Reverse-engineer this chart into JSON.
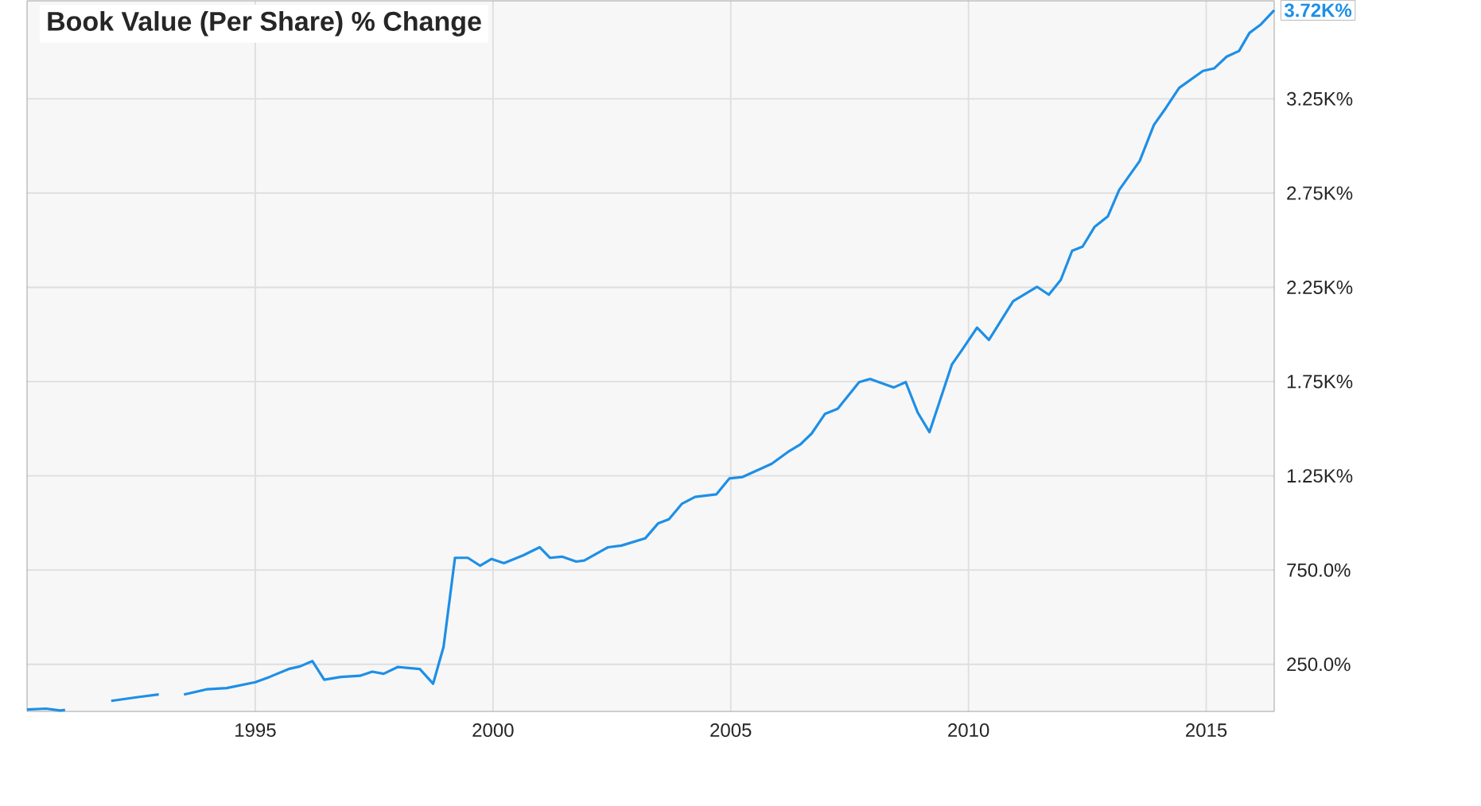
{
  "chart_data": {
    "type": "line",
    "title": "Book Value (Per Share) % Change",
    "x": [
      1990.2,
      1990.6,
      1990.9,
      1991.0,
      1991.05,
      1991.97,
      1992.5,
      1992.97,
      1993.2,
      1993.5,
      1993.99,
      1994.4,
      1995.0,
      1995.3,
      1995.7,
      1995.94,
      1996.2,
      1996.45,
      1996.8,
      1997.2,
      1997.46,
      1997.7,
      1998.0,
      1998.46,
      1998.74,
      1998.96,
      1999.2,
      1999.47,
      1999.73,
      1999.97,
      2000.23,
      2000.64,
      2000.98,
      2001.2,
      2001.45,
      2001.75,
      2001.92,
      2002.42,
      2002.7,
      2003.2,
      2003.47,
      2003.7,
      2003.97,
      2004.25,
      2004.7,
      2004.97,
      2005.25,
      2005.86,
      2006.2,
      2006.47,
      2006.7,
      2006.98,
      2007.25,
      2007.7,
      2007.93,
      2008.43,
      2008.68,
      2008.93,
      2009.18,
      2009.65,
      2009.88,
      2010.18,
      2010.43,
      2010.94,
      2011.44,
      2011.69,
      2011.94,
      2012.18,
      2012.4,
      2012.65,
      2012.93,
      2013.17,
      2013.6,
      2013.9,
      2014.15,
      2014.43,
      2014.93,
      2015.17,
      2015.43,
      2015.69,
      2015.91,
      2016.15,
      2016.43
    ],
    "series": [
      {
        "color": "#1e8fe6",
        "values": [
          10,
          15,
          5,
          8,
          null,
          56,
          75,
          90,
          null,
          90,
          118,
          124,
          155,
          183,
          225,
          239,
          267,
          168,
          183,
          189,
          211,
          200,
          236,
          225,
          147,
          343,
          815,
          815,
          773,
          809,
          787,
          829,
          871,
          815,
          821,
          795,
          801,
          871,
          880,
          918,
          997,
          1020,
          1101,
          1138,
          1152,
          1236,
          1244,
          1314,
          1376,
          1418,
          1474,
          1578,
          1606,
          1747,
          1764,
          1719,
          1747,
          1587,
          1482,
          1840,
          1924,
          2036,
          1971,
          2177,
          2253,
          2211,
          2289,
          2444,
          2466,
          2570,
          2626,
          2767,
          2920,
          3112,
          3201,
          3308,
          3398,
          3412,
          3474,
          3504,
          3600,
          3645,
          3720
        ]
      }
    ],
    "xlim": [
      1990.2,
      2016.43
    ],
    "ylim": [
      0,
      3770
    ],
    "xticks": [
      1995,
      2000,
      2005,
      2010,
      2015
    ],
    "yticks": [
      {
        "value": 250,
        "label": "250.0%"
      },
      {
        "value": 750,
        "label": "750.0%"
      },
      {
        "value": 1250,
        "label": "1.25K%"
      },
      {
        "value": 1750,
        "label": "1.75K%"
      },
      {
        "value": 2250,
        "label": "2.25K%"
      },
      {
        "value": 2750,
        "label": "2.75K%"
      },
      {
        "value": 3250,
        "label": "3.25K%"
      }
    ],
    "annotations": [
      {
        "text": "3.72K%",
        "x": 2016.43,
        "y": 3720
      }
    ],
    "grid": true,
    "marker": "none",
    "line_style": "solid"
  }
}
